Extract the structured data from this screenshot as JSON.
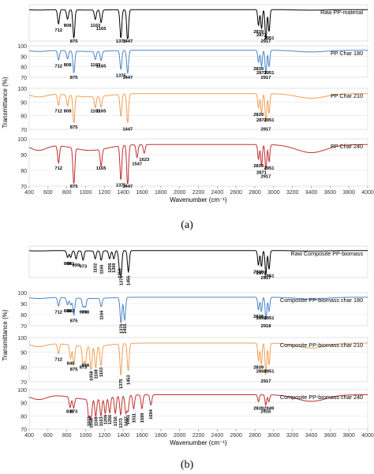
{
  "figure": {
    "caption_a": "(a)",
    "caption_b": "(b)"
  },
  "chart_data": [
    {
      "type": "line",
      "panel": "a",
      "xlabel": "Wavenumber (cm⁻¹)",
      "ylabel": "Transmittance (%)",
      "xlim": [
        400,
        4000
      ],
      "x_ticks": [
        "400",
        "600",
        "800",
        "1000",
        "1200",
        "1400",
        "1600",
        "1800",
        "2000",
        "2200",
        "2400",
        "2600",
        "2800",
        "3000",
        "3200",
        "3400",
        "3600",
        "3800",
        "4000"
      ],
      "series": [
        {
          "name": "Raw PP-material",
          "color": "#000000",
          "ylim": null,
          "y_ticks": [],
          "bands": [
            {
              "x": 712,
              "depth": 0.45,
              "label": "712"
            },
            {
              "x": 808,
              "depth": 0.3,
              "label": "808"
            },
            {
              "x": 875,
              "depth": 0.9,
              "label": "875"
            },
            {
              "x": 1103,
              "depth": 0.3,
              "label": "1103"
            },
            {
              "x": 1165,
              "depth": 0.4,
              "label": "1165"
            },
            {
              "x": 1375,
              "depth": 0.9,
              "label": "1375"
            },
            {
              "x": 1447,
              "depth": 1.0,
              "label": "1447"
            },
            {
              "x": 2839,
              "depth": 0.5,
              "label": "2839"
            },
            {
              "x": 2871,
              "depth": 0.6,
              "label": "2871"
            },
            {
              "x": 2917,
              "depth": 1.0,
              "label": "2917"
            },
            {
              "x": 2951,
              "depth": 0.7,
              "label": "2951"
            }
          ]
        },
        {
          "name": "PP Char 180",
          "color": "#4a86c8",
          "ylim": [
            70,
            100
          ],
          "y_ticks": [
            "70",
            "80",
            "90",
            "100"
          ],
          "bands": [
            {
              "x": 712,
              "depth": 0.35,
              "label": "712"
            },
            {
              "x": 808,
              "depth": 0.3,
              "label": "808"
            },
            {
              "x": 875,
              "depth": 0.8,
              "label": "875"
            },
            {
              "x": 1103,
              "depth": 0.3,
              "label": "1103"
            },
            {
              "x": 1165,
              "depth": 0.35,
              "label": "1165"
            },
            {
              "x": 1375,
              "depth": 0.7,
              "label": "1375"
            },
            {
              "x": 1447,
              "depth": 0.85,
              "label": "1447"
            },
            {
              "x": 2839,
              "depth": 0.45,
              "label": "2839"
            },
            {
              "x": 2871,
              "depth": 0.6,
              "label": "2871"
            },
            {
              "x": 2917,
              "depth": 0.9,
              "label": "2917"
            },
            {
              "x": 2951,
              "depth": 0.6,
              "label": "2951"
            }
          ]
        },
        {
          "name": "PP Char 210",
          "color": "#f0a055",
          "ylim": [
            70,
            100
          ],
          "y_ticks": [
            "70",
            "80",
            "90",
            "100"
          ],
          "bands": [
            {
              "x": 712,
              "depth": 0.3,
              "label": "712"
            },
            {
              "x": 808,
              "depth": 0.3,
              "label": "808"
            },
            {
              "x": 875,
              "depth": 0.75,
              "label": "875"
            },
            {
              "x": 1103,
              "depth": 0.3,
              "label": "1103"
            },
            {
              "x": 1165,
              "depth": 0.3,
              "label": "1165"
            },
            {
              "x": 1375,
              "depth": 0.6,
              "label": ""
            },
            {
              "x": 1447,
              "depth": 0.8,
              "label": "1447"
            },
            {
              "x": 2839,
              "depth": 0.4,
              "label": "2839"
            },
            {
              "x": 2871,
              "depth": 0.55,
              "label": "2871"
            },
            {
              "x": 2917,
              "depth": 0.8,
              "label": "2917"
            },
            {
              "x": 2951,
              "depth": 0.55,
              "label": "2951"
            }
          ]
        },
        {
          "name": "PP Char 240",
          "color": "#c03030",
          "ylim": [
            70,
            100
          ],
          "y_ticks": [
            "70",
            "80",
            "90",
            "100"
          ],
          "bands": [
            {
              "x": 712,
              "depth": 0.4,
              "label": "712"
            },
            {
              "x": 875,
              "depth": 0.85,
              "label": "875"
            },
            {
              "x": 1165,
              "depth": 0.4,
              "label": "1165"
            },
            {
              "x": 1375,
              "depth": 0.8,
              "label": "1375"
            },
            {
              "x": 1447,
              "depth": 0.95,
              "label": "1447"
            },
            {
              "x": 1547,
              "depth": 0.3,
              "label": "1547"
            },
            {
              "x": 1623,
              "depth": 0.2,
              "label": "1623"
            },
            {
              "x": 2839,
              "depth": 0.35,
              "label": "2839"
            },
            {
              "x": 2871,
              "depth": 0.5,
              "label": "2871"
            },
            {
              "x": 2917,
              "depth": 0.6,
              "label": "2917"
            },
            {
              "x": 2951,
              "depth": 0.4,
              "label": "2951"
            }
          ]
        }
      ]
    },
    {
      "type": "line",
      "panel": "b",
      "xlabel": "Wavenumber (cm⁻¹)",
      "ylabel": "Transmittance (%)",
      "xlim": [
        400,
        4000
      ],
      "x_ticks": [
        "400",
        "600",
        "800",
        "1000",
        "1200",
        "1400",
        "1600",
        "1800",
        "2000",
        "2200",
        "2400",
        "2600",
        "2800",
        "3000",
        "3200",
        "3400",
        "3600",
        "3800",
        "4000"
      ],
      "series": [
        {
          "name": "Raw Composite PP-biomass",
          "color": "#000000",
          "ylim": null,
          "y_ticks": [],
          "bands": [
            {
              "x": 809,
              "depth": 0.25,
              "label": "809"
            },
            {
              "x": 841,
              "depth": 0.25,
              "label": "841"
            },
            {
              "x": 899,
              "depth": 0.3,
              "label": "899"
            },
            {
              "x": 973,
              "depth": 0.35,
              "label": "973"
            },
            {
              "x": 1102,
              "depth": 0.3,
              "label": "1102"
            },
            {
              "x": 1166,
              "depth": 0.35,
              "label": "1166"
            },
            {
              "x": 1255,
              "depth": 0.3,
              "label": "1255"
            },
            {
              "x": 1300,
              "depth": 0.3,
              "label": "1300"
            },
            {
              "x": 1359,
              "depth": 0.5,
              "label": "1359"
            },
            {
              "x": 1376,
              "depth": 0.9,
              "label": "1376"
            },
            {
              "x": 1455,
              "depth": 0.8,
              "label": "1455"
            },
            {
              "x": 2838,
              "depth": 0.55,
              "label": "2838"
            },
            {
              "x": 2870,
              "depth": 0.6,
              "label": "2870"
            },
            {
              "x": 2917,
              "depth": 0.9,
              "label": "2917"
            },
            {
              "x": 2951,
              "depth": 0.7,
              "label": "2951"
            }
          ]
        },
        {
          "name": "Composite PP-biomass char 180",
          "color": "#4a86c8",
          "ylim": [
            70,
            100
          ],
          "y_ticks": [
            "70",
            "80",
            "90",
            "100"
          ],
          "bands": [
            {
              "x": 712,
              "depth": 0.3,
              "label": "712"
            },
            {
              "x": 808,
              "depth": 0.25,
              "label": "808"
            },
            {
              "x": 842,
              "depth": 0.25,
              "label": "842"
            },
            {
              "x": 875,
              "depth": 0.6,
              "label": "875"
            },
            {
              "x": 973,
              "depth": 0.3,
              "label": "973"
            },
            {
              "x": 998,
              "depth": 0.3,
              "label": "998"
            },
            {
              "x": 1166,
              "depth": 0.3,
              "label": "1166"
            },
            {
              "x": 1376,
              "depth": 0.9,
              "label": "1376"
            },
            {
              "x": 1415,
              "depth": 0.8,
              "label": "1415"
            },
            {
              "x": 2838,
              "depth": 0.45,
              "label": "2838"
            },
            {
              "x": 2869,
              "depth": 0.5,
              "label": "2869"
            },
            {
              "x": 2918,
              "depth": 0.8,
              "label": "2918"
            },
            {
              "x": 2951,
              "depth": 0.5,
              "label": "2951"
            }
          ]
        },
        {
          "name": "Composite PP-biomass char 210",
          "color": "#f0a055",
          "ylim": [
            70,
            100
          ],
          "y_ticks": [
            "70",
            "80",
            "90",
            "100"
          ],
          "bands": [
            {
              "x": 712,
              "depth": 0.25,
              "label": "712"
            },
            {
              "x": 840,
              "depth": 0.35,
              "label": "840"
            },
            {
              "x": 875,
              "depth": 0.5,
              "label": "875"
            },
            {
              "x": 973,
              "depth": 0.45,
              "label": "973"
            },
            {
              "x": 998,
              "depth": 0.4,
              "label": "998"
            },
            {
              "x": 1058,
              "depth": 0.6,
              "label": "1058"
            },
            {
              "x": 1108,
              "depth": 0.55,
              "label": "1108"
            },
            {
              "x": 1163,
              "depth": 0.5,
              "label": "1163"
            },
            {
              "x": 1375,
              "depth": 0.8,
              "label": "1375"
            },
            {
              "x": 1453,
              "depth": 0.7,
              "label": "1453"
            },
            {
              "x": 2839,
              "depth": 0.45,
              "label": "2839"
            },
            {
              "x": 2869,
              "depth": 0.55,
              "label": "2869"
            },
            {
              "x": 2917,
              "depth": 0.8,
              "label": "2917"
            },
            {
              "x": 2951,
              "depth": 0.55,
              "label": "2951"
            }
          ]
        },
        {
          "name": "Composite PP-biomass char 240",
          "color": "#c03030",
          "ylim": [
            70,
            100
          ],
          "y_ticks": [
            "70",
            "80",
            "90",
            "100"
          ],
          "bands": [
            {
              "x": 835,
              "depth": 0.3,
              "label": "835"
            },
            {
              "x": 873,
              "depth": 0.3,
              "label": "873"
            },
            {
              "x": 1033,
              "depth": 0.5,
              "label": "1033"
            },
            {
              "x": 1058,
              "depth": 0.55,
              "label": "1058"
            },
            {
              "x": 1108,
              "depth": 0.5,
              "label": "1108"
            },
            {
              "x": 1163,
              "depth": 0.5,
              "label": "1163"
            },
            {
              "x": 1209,
              "depth": 0.45,
              "label": "1209"
            },
            {
              "x": 1256,
              "depth": 0.45,
              "label": "1256"
            },
            {
              "x": 1316,
              "depth": 0.5,
              "label": "1316"
            },
            {
              "x": 1373,
              "depth": 0.55,
              "label": "1373"
            },
            {
              "x": 1427,
              "depth": 0.5,
              "label": "1427"
            },
            {
              "x": 1451,
              "depth": 0.45,
              "label": "1451"
            },
            {
              "x": 1511,
              "depth": 0.4,
              "label": "1511"
            },
            {
              "x": 1599,
              "depth": 0.4,
              "label": "1599"
            },
            {
              "x": 1694,
              "depth": 0.3,
              "label": "1694"
            },
            {
              "x": 2839,
              "depth": 0.2,
              "label": "2839"
            },
            {
              "x": 2916,
              "depth": 0.3,
              "label": "2916"
            },
            {
              "x": 2949,
              "depth": 0.2,
              "label": "2949"
            }
          ]
        }
      ]
    }
  ]
}
